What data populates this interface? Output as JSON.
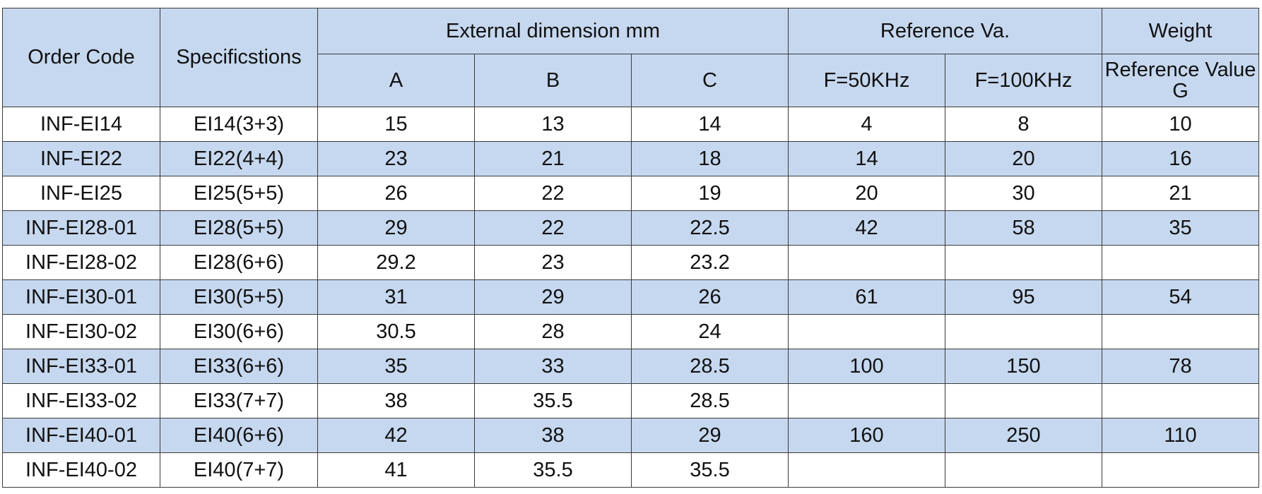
{
  "headers": {
    "order_code": "Order Code",
    "specifications": "Specificstions",
    "external_dimension": "External dimension mm",
    "reference_va": "Reference Va.",
    "weight": "Weight",
    "col_a": "A",
    "col_b": "B",
    "col_c": "C",
    "freq_50": "F=50KHz",
    "freq_100": "F=100KHz",
    "weight_sub": "Reference Value G"
  },
  "rows": [
    [
      "INF-EI14",
      "EI14(3+3)",
      "15",
      "13",
      "14",
      "4",
      "8",
      "10"
    ],
    [
      "INF-EI22",
      "EI22(4+4)",
      "23",
      "21",
      "18",
      "14",
      "20",
      "16"
    ],
    [
      "INF-EI25",
      "EI25(5+5)",
      "26",
      "22",
      "19",
      "20",
      "30",
      "21"
    ],
    [
      "INF-EI28-01",
      "EI28(5+5)",
      "29",
      "22",
      "22.5",
      "42",
      "58",
      "35"
    ],
    [
      "INF-EI28-02",
      "EI28(6+6)",
      "29.2",
      "23",
      "23.2",
      "",
      "",
      ""
    ],
    [
      "INF-EI30-01",
      "EI30(5+5)",
      "31",
      "29",
      "26",
      "61",
      "95",
      "54"
    ],
    [
      "INF-EI30-02",
      "EI30(6+6)",
      "30.5",
      "28",
      "24",
      "",
      "",
      ""
    ],
    [
      "INF-EI33-01",
      "EI33(6+6)",
      "35",
      "33",
      "28.5",
      "100",
      "150",
      "78"
    ],
    [
      "INF-EI33-02",
      "EI33(7+7)",
      "38",
      "35.5",
      "28.5",
      "",
      "",
      ""
    ],
    [
      "INF-EI40-01",
      "EI40(6+6)",
      "42",
      "38",
      "29",
      "160",
      "250",
      "110"
    ],
    [
      "INF-EI40-02",
      "EI40(7+7)",
      "41",
      "35.5",
      "35.5",
      "",
      "",
      ""
    ]
  ],
  "colors": {
    "header_bg": "#c6d8ef",
    "stripe_bg": "#c6d8ef",
    "border": "#3a3a3a"
  }
}
